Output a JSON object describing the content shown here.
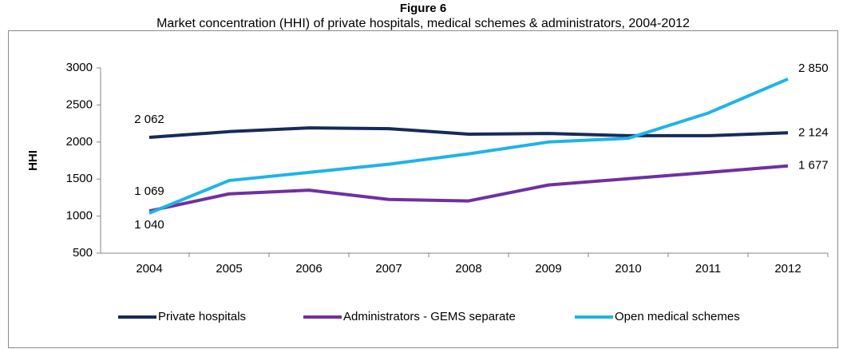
{
  "chart_data": {
    "type": "line",
    "title": "Figure 6",
    "subtitle": "Market concentration (HHI) of private hospitals, medical schemes & administrators, 2004-2012",
    "y_label": "HHI",
    "categories": [
      "2004",
      "2005",
      "2006",
      "2007",
      "2008",
      "2009",
      "2010",
      "2011",
      "2012"
    ],
    "series": [
      {
        "name": "Private hospitals",
        "color": "#172b59",
        "values": [
          2062,
          2140,
          2190,
          2180,
          2105,
          2115,
          2085,
          2085,
          2124
        ],
        "value_labels": [
          "2 062",
          null,
          null,
          null,
          null,
          null,
          null,
          null,
          "2 124"
        ]
      },
      {
        "name": "Administrators - GEMS separate",
        "color": "#7030a0",
        "values": [
          1069,
          1300,
          1350,
          1225,
          1205,
          1420,
          1505,
          1590,
          1677
        ],
        "value_labels": [
          "1 069",
          null,
          null,
          null,
          null,
          null,
          null,
          null,
          "1 677"
        ]
      },
      {
        "name": "Open medical schemes",
        "color": "#1fb4e6",
        "values": [
          1040,
          1480,
          1590,
          1700,
          1840,
          2000,
          2050,
          2390,
          2850
        ],
        "value_labels": [
          "1 040",
          null,
          null,
          null,
          null,
          null,
          null,
          null,
          "2 850"
        ]
      }
    ],
    "ylim": [
      500,
      3000
    ],
    "yticks": [
      500,
      1000,
      1500,
      2000,
      2500,
      3000
    ],
    "grid": false,
    "legend": "bottom"
  }
}
